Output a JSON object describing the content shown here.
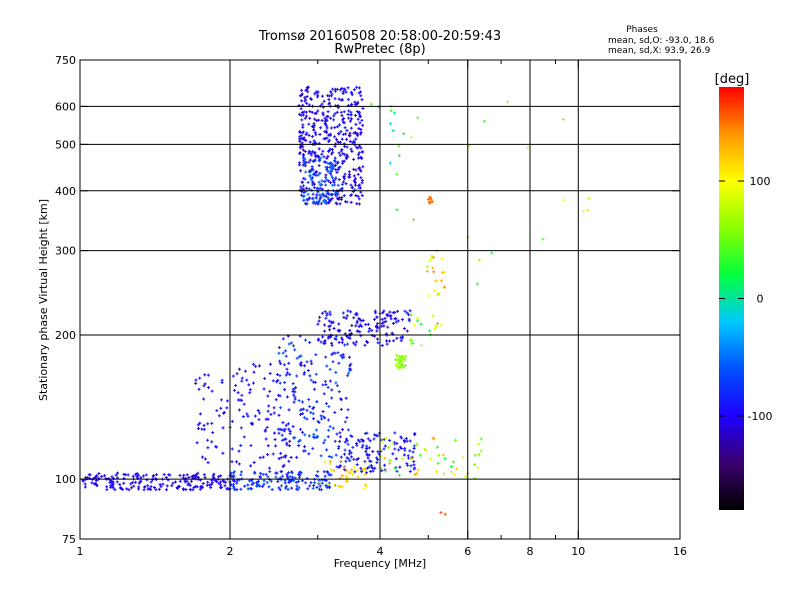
{
  "chart_data": {
    "type": "scatter",
    "title": "Tromsø 20160508 20:58:00-20:59:43",
    "subtitle": "RwPretec (8p)",
    "xlabel": "Frequency [MHz]",
    "ylabel": "Stationary phase Virtual Height [km]",
    "x_scale": "log",
    "y_scale": "log",
    "xlim": [
      1,
      16
    ],
    "ylim": [
      75,
      750
    ],
    "x_ticks": [
      1,
      2,
      4,
      6,
      8,
      10,
      16
    ],
    "x_minor_ticks": [
      3,
      5,
      7,
      9
    ],
    "y_ticks": [
      75,
      100,
      200,
      300,
      400,
      500,
      600,
      750
    ],
    "x_gridlines": [
      2,
      4,
      6,
      8,
      10
    ],
    "y_gridlines": [
      100,
      200,
      300,
      400,
      500,
      600
    ],
    "grid": true,
    "stats": {
      "heading": "Phases",
      "lines": [
        "mean, sd,O: -93.0, 18.6",
        "mean, sd,X:  93.9, 26.9"
      ]
    },
    "colorbar": {
      "label": "[deg]",
      "ticks": [
        100,
        0,
        -100
      ],
      "range": [
        -180,
        180
      ],
      "colors": [
        "#000000",
        "#3a006e",
        "#1e00ff",
        "#0050ff",
        "#00c8ff",
        "#00ff3c",
        "#8cff00",
        "#ffff00",
        "#ff9600",
        "#ff0000"
      ]
    },
    "clusters": [
      {
        "x": [
          2.75,
          3.7
        ],
        "y": [
          375,
          660
        ],
        "n": 480,
        "phase": -100,
        "spread": 40
      },
      {
        "x": [
          2.8,
          3.3
        ],
        "y": [
          375,
          470
        ],
        "n": 80,
        "phase": -60,
        "spread": 40
      },
      {
        "x": [
          1.0,
          2.05
        ],
        "y": [
          95,
          103
        ],
        "n": 200,
        "phase": -100,
        "spread": 20
      },
      {
        "x": [
          2.0,
          3.2
        ],
        "y": [
          95,
          104
        ],
        "n": 140,
        "phase": -75,
        "spread": 35
      },
      {
        "x": [
          1.7,
          2.8
        ],
        "y": [
          105,
          175
        ],
        "n": 160,
        "phase": -95,
        "spread": 30
      },
      {
        "x": [
          2.5,
          3.5
        ],
        "y": [
          110,
          200
        ],
        "n": 170,
        "phase": -80,
        "spread": 45
      },
      {
        "x": [
          3.0,
          4.6
        ],
        "y": [
          190,
          225
        ],
        "n": 150,
        "phase": -100,
        "spread": 30
      },
      {
        "x": [
          3.2,
          4.7
        ],
        "y": [
          103,
          125
        ],
        "n": 130,
        "phase": -90,
        "spread": 35
      },
      {
        "x": [
          3.0,
          3.8
        ],
        "y": [
          95,
          110
        ],
        "n": 40,
        "phase": 110,
        "spread": 60
      },
      {
        "x": [
          4.3,
          4.5
        ],
        "y": [
          170,
          182
        ],
        "n": 30,
        "phase": 60,
        "spread": 15
      },
      {
        "x": [
          4.0,
          6.4
        ],
        "y": [
          100,
          122
        ],
        "n": 50,
        "phase": 80,
        "spread": 120
      },
      {
        "x": [
          4.9,
          5.4
        ],
        "y": [
          240,
          300
        ],
        "n": 20,
        "phase": 100,
        "spread": 90
      },
      {
        "x": [
          4.6,
          5.4
        ],
        "y": [
          190,
          225
        ],
        "n": 18,
        "phase": 60,
        "spread": 90
      },
      {
        "x": [
          3.7,
          5.2
        ],
        "y": [
          330,
          620
        ],
        "n": 16,
        "phase": 30,
        "spread": 120
      },
      {
        "x": [
          5.0,
          5.1
        ],
        "y": [
          375,
          390
        ],
        "n": 8,
        "phase": 150,
        "spread": 10
      },
      {
        "x": [
          5.8,
          10.5
        ],
        "y": [
          250,
          620
        ],
        "n": 14,
        "phase": 60,
        "spread": 120
      },
      {
        "x": [
          5.3,
          5.5
        ],
        "y": [
          82,
          88
        ],
        "n": 2,
        "phase": 160,
        "spread": 10
      }
    ]
  }
}
